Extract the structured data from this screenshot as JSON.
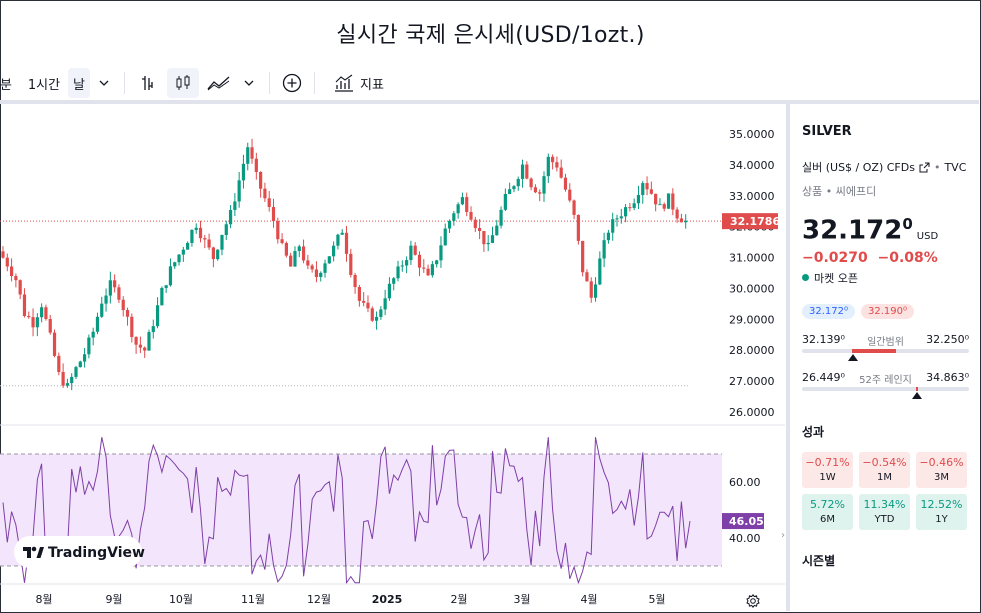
{
  "title": "실시간 국제 은시세(USD/1ozt.)",
  "toolbar": {
    "minute_label": "분",
    "interval_label": "1시간",
    "day_label": "날",
    "chevron": "⌄",
    "indicators_label": "지표"
  },
  "watermark": "TradingView",
  "chart_data": {
    "type": "candlestick",
    "price_axis": [
      "35.0000",
      "34.0000",
      "33.0000",
      "32.0000",
      "31.0000",
      "30.0000",
      "29.0000",
      "28.0000",
      "27.0000",
      "26.0000"
    ],
    "ylim": [
      26.0,
      35.0
    ],
    "last_price_label": "32.1786",
    "last_price": 32.1786,
    "time_labels": [
      "8월",
      "9월",
      "10월",
      "11월",
      "12월",
      "2025",
      "2월",
      "3월",
      "4월",
      "5월"
    ],
    "close_series": [
      31.2,
      30.8,
      30.3,
      29.2,
      28.9,
      29.5,
      28.4,
      27.2,
      26.8,
      27.4,
      27.9,
      28.6,
      29.6,
      30.1,
      29.8,
      29.0,
      28.2,
      28.0,
      28.9,
      29.9,
      30.6,
      31.1,
      31.6,
      32.1,
      31.5,
      31.0,
      31.8,
      32.4,
      33.5,
      34.6,
      33.6,
      32.9,
      32.2,
      31.3,
      30.7,
      31.4,
      30.6,
      30.4,
      30.9,
      31.3,
      31.9,
      30.6,
      29.6,
      29.2,
      29.0,
      29.8,
      30.3,
      30.8,
      31.3,
      30.8,
      30.3,
      31.0,
      31.9,
      32.5,
      32.9,
      32.4,
      31.8,
      31.3,
      32.1,
      32.9,
      33.4,
      34.0,
      33.4,
      33.1,
      34.2,
      34.0,
      33.2,
      32.3,
      30.6,
      29.7,
      30.9,
      31.9,
      32.3,
      32.6,
      32.9,
      33.5,
      33.1,
      32.6,
      32.9,
      32.4,
      32.17
    ],
    "rsi": {
      "axis": [
        "60.00",
        "40.00"
      ],
      "last_label": "46.05",
      "last": 46.05,
      "upper": 70,
      "lower": 30
    }
  },
  "side": {
    "symbol": "SILVER",
    "description": "실버 (US$ / OZ) CFDs",
    "exchange": "TVC",
    "category": "상품",
    "source": "씨에프디",
    "price_main": "32.172",
    "price_sup": "0",
    "currency": "USD",
    "change": "−0.0270",
    "change_pct": "−0.08%",
    "market_status": "마켓 오픈",
    "bid": "32.172⁰",
    "ask": "32.190⁰",
    "day_low": "32.139⁰",
    "day_label": "일간범위",
    "day_high": "32.250⁰",
    "wk_low": "26.449⁰",
    "wk_label": "52주 레인지",
    "wk_high": "34.863⁰",
    "perf_title": "성과",
    "perf": [
      {
        "v": "−0.71%",
        "k": "1W"
      },
      {
        "v": "−0.54%",
        "k": "1M"
      },
      {
        "v": "−0.46%",
        "k": "3M"
      },
      {
        "v": "5.72%",
        "k": "6M"
      },
      {
        "v": "11.34%",
        "k": "YTD"
      },
      {
        "v": "12.52%",
        "k": "1Y"
      }
    ],
    "seasonal_title": "시즌별"
  },
  "colors": {
    "up": "#089981",
    "down": "#e04b4b",
    "rsi_line": "#7e3fa8",
    "rsi_band": "#f3e5fb"
  }
}
